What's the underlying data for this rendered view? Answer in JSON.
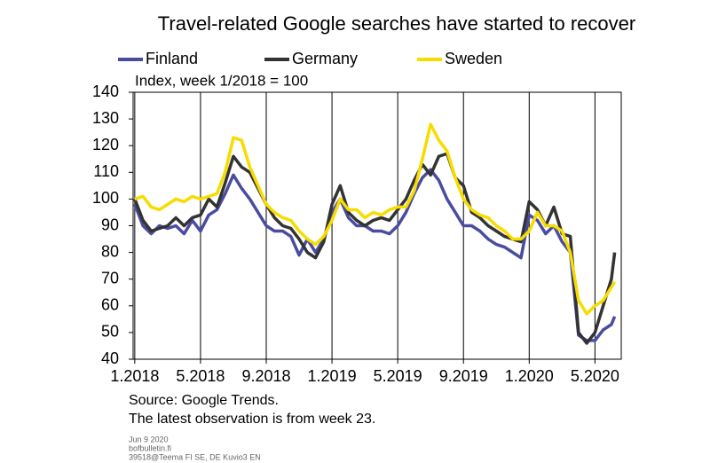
{
  "chart_data": {
    "type": "line",
    "title": "Travel-related Google searches have started to recover",
    "subtitle": "Index, week 1/2018 = 100",
    "source": "Source: Google Trends.",
    "note": "The latest observation is from week 23.",
    "footer": [
      "Jun 9 2020",
      "bofbulletin.fi",
      "39518@Teema FI SE, DE Kuvio3 EN"
    ],
    "x": [
      0,
      0.5,
      1,
      1.5,
      2,
      2.5,
      3,
      3.5,
      4,
      4.5,
      5,
      5.5,
      6,
      6.5,
      7,
      7.5,
      8,
      8.5,
      9,
      9.5,
      10,
      10.5,
      11,
      11.5,
      12,
      12.5,
      13,
      13.5,
      14,
      14.5,
      15,
      15.5,
      16,
      16.5,
      17,
      17.5,
      18,
      18.5,
      19,
      19.5,
      20,
      20.5,
      21,
      21.5,
      22,
      22.5,
      23,
      23.5,
      24,
      24.5,
      25,
      25.5,
      26,
      26.5,
      27,
      27.5,
      28,
      28.5,
      29,
      29.2
    ],
    "series": [
      {
        "name": "Finland",
        "color": "#4a4ca0",
        "values": [
          98,
          90,
          87,
          90,
          89,
          90,
          87,
          92,
          88,
          94,
          96,
          102,
          109,
          104,
          100,
          95,
          90,
          88,
          88,
          86,
          79,
          85,
          80,
          85,
          95,
          100,
          93,
          90,
          90,
          88,
          88,
          87,
          90,
          95,
          102,
          108,
          111,
          107,
          100,
          95,
          90,
          90,
          88,
          85,
          83,
          82,
          80,
          78,
          94,
          92,
          87,
          90,
          84,
          80,
          49,
          47,
          47,
          51,
          53,
          56
        ]
      },
      {
        "name": "Germany",
        "color": "#333333",
        "values": [
          100,
          92,
          88,
          89,
          90,
          93,
          90,
          93,
          94,
          100,
          97,
          106,
          116,
          112,
          110,
          104,
          98,
          93,
          90,
          89,
          85,
          80,
          78,
          84,
          98,
          105,
          95,
          92,
          90,
          92,
          93,
          92,
          96,
          100,
          107,
          113,
          109,
          116,
          117,
          108,
          105,
          95,
          93,
          90,
          88,
          86,
          85,
          84,
          99,
          96,
          90,
          97,
          87,
          86,
          50,
          46,
          50,
          60,
          70,
          80
        ]
      },
      {
        "name": "Sweden",
        "color": "#f7dc00",
        "values": [
          100,
          101,
          97,
          96,
          98,
          100,
          99,
          101,
          100,
          101,
          102,
          110,
          123,
          122,
          112,
          105,
          98,
          95,
          93,
          92,
          88,
          85,
          83,
          86,
          92,
          100,
          96,
          96,
          93,
          95,
          94,
          96,
          97,
          97,
          103,
          115,
          128,
          122,
          118,
          108,
          100,
          96,
          94,
          93,
          90,
          88,
          85,
          85,
          88,
          95,
          90,
          90,
          88,
          80,
          62,
          57,
          60,
          62,
          67,
          69
        ]
      }
    ],
    "xlim": [
      -0.1,
      29.6
    ],
    "xticks": [
      {
        "value": 0,
        "label": "1.2018"
      },
      {
        "value": 4,
        "label": "5.2018"
      },
      {
        "value": 8,
        "label": "9.2018"
      },
      {
        "value": 12,
        "label": "1.2019"
      },
      {
        "value": 16,
        "label": "5.2019"
      },
      {
        "value": 20,
        "label": "9.2019"
      },
      {
        "value": 24,
        "label": "1.2020"
      },
      {
        "value": 28,
        "label": "5.2020"
      }
    ],
    "ylim": [
      40,
      140
    ],
    "yticks": [
      40,
      50,
      60,
      70,
      80,
      90,
      100,
      110,
      120,
      130,
      140
    ],
    "grid": "x",
    "legend": "top"
  }
}
